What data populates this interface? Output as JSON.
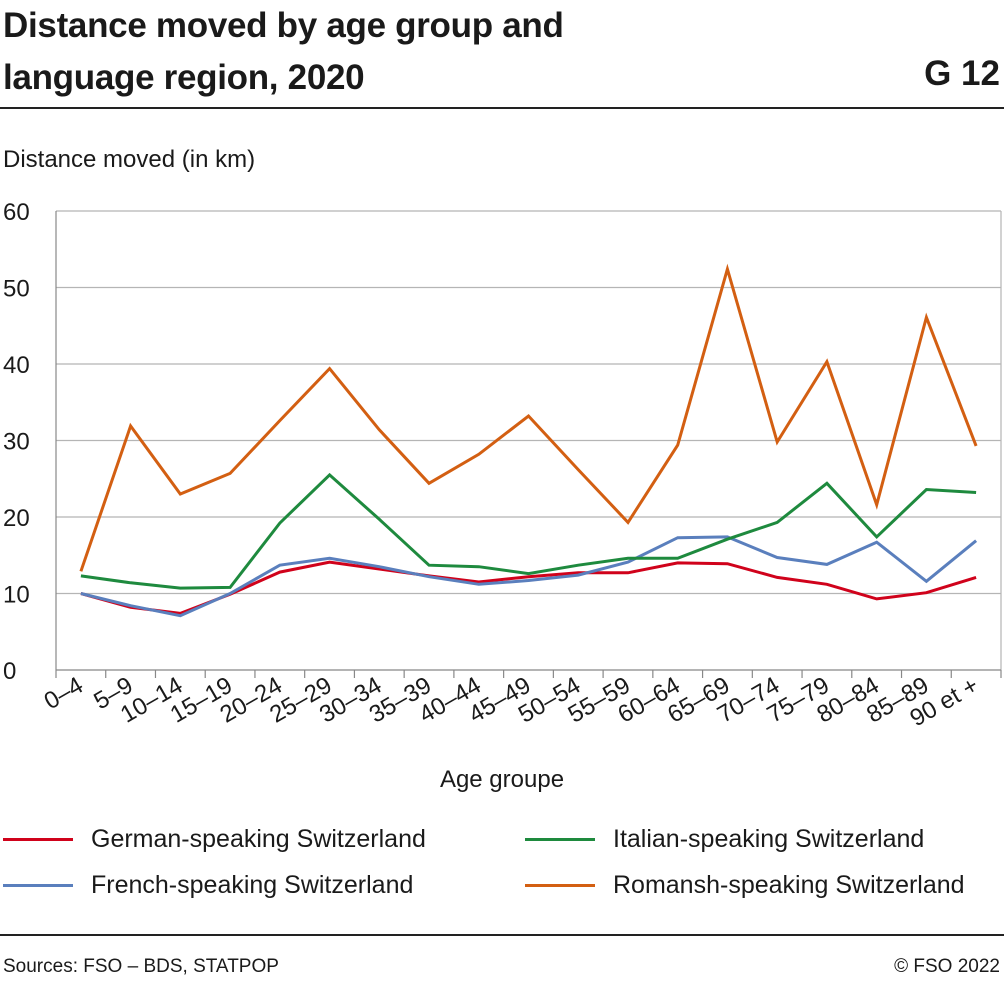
{
  "header": {
    "title_line1": "Distance moved by age group and",
    "title_line2": "language region, 2020",
    "code": "G 12"
  },
  "footer": {
    "source": "Sources: FSO – BDS, STATPOP",
    "copyright": "© FSO 2022"
  },
  "chart_data": {
    "type": "line",
    "ylabel": "Distance moved (in km)",
    "xlabel": "Age groupe",
    "ylim": [
      0,
      60
    ],
    "yticks": [
      0,
      10,
      20,
      30,
      40,
      50,
      60
    ],
    "grid": "horizontal",
    "legend_position": "bottom",
    "categories": [
      "0–4",
      "5–9",
      "10–14",
      "15–19",
      "20–24",
      "25–29",
      "30–34",
      "35–39",
      "40–44",
      "45–49",
      "50–54",
      "55–59",
      "60–64",
      "65–69",
      "70–74",
      "75–79",
      "80–84",
      "85–89",
      "90 et +"
    ],
    "series": [
      {
        "name": "German-speaking Switzerland",
        "color": "#d0021b",
        "values": [
          10.0,
          8.2,
          7.4,
          9.9,
          12.8,
          14.1,
          13.2,
          12.3,
          11.5,
          12.2,
          12.7,
          12.7,
          14.0,
          13.9,
          12.1,
          11.2,
          9.3,
          10.1,
          12.1
        ]
      },
      {
        "name": "Italian-speaking Switzerland",
        "color": "#1e8a3e",
        "values": [
          12.3,
          11.4,
          10.7,
          10.8,
          19.2,
          25.5,
          19.7,
          13.7,
          13.5,
          12.6,
          13.7,
          14.6,
          14.6,
          17.1,
          19.3,
          24.4,
          17.4,
          23.6,
          23.2
        ]
      },
      {
        "name": "French-speaking Switzerland",
        "color": "#5a7fbd",
        "values": [
          10.0,
          8.4,
          7.1,
          10.0,
          13.7,
          14.6,
          13.5,
          12.2,
          11.2,
          11.7,
          12.4,
          14.1,
          17.3,
          17.4,
          14.7,
          13.8,
          16.7,
          11.6,
          16.9
        ]
      },
      {
        "name": "Romansh-speaking Switzerland",
        "color": "#d35f12",
        "values": [
          12.9,
          31.9,
          23.0,
          25.7,
          32.6,
          39.4,
          31.4,
          24.4,
          28.2,
          33.2,
          26.2,
          19.3,
          29.4,
          52.4,
          29.8,
          40.3,
          21.6,
          46.1,
          29.3
        ]
      }
    ]
  }
}
